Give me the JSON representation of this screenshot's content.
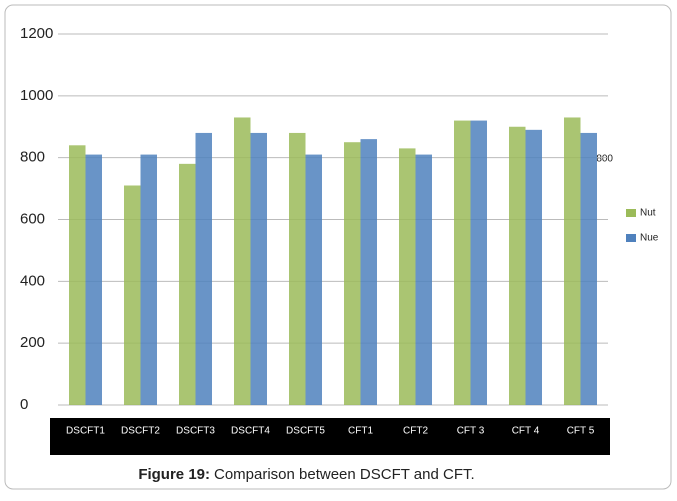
{
  "chart_data": {
    "type": "bar",
    "caption_label": "Figure 19:",
    "caption": "Comparison between DSCFT and CFT.",
    "categories": [
      "DSCFT1",
      "DSCFT2",
      "DSCFT3",
      "DSCFT4",
      "DSCFT5",
      "CFT1",
      "CFT2",
      "CFT 3",
      "CFT 4",
      "CFT 5"
    ],
    "series": [
      {
        "name": "Nut",
        "color": "#9bbb59",
        "values": [
          840,
          710,
          780,
          930,
          880,
          850,
          830,
          920,
          900,
          930
        ]
      },
      {
        "name": "Nue",
        "color": "#4f81bd",
        "values": [
          810,
          810,
          880,
          880,
          810,
          860,
          810,
          920,
          890,
          880
        ]
      }
    ],
    "annotation": "800",
    "ylim": [
      0,
      1200
    ],
    "yticks": [
      0,
      200,
      400,
      600,
      800,
      1000,
      1200
    ],
    "grid": true
  }
}
